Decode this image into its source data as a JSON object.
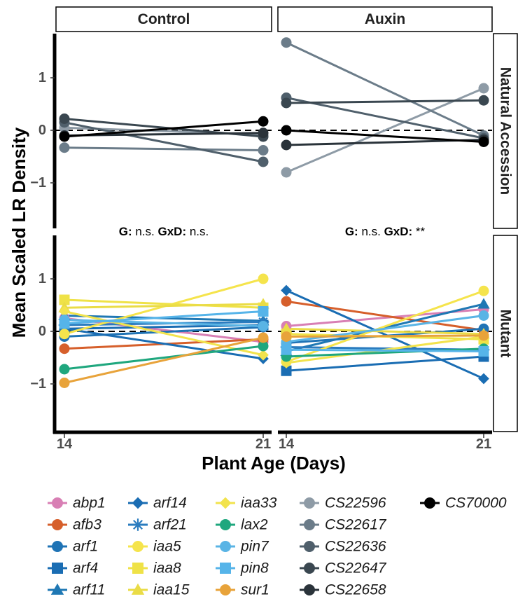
{
  "chart_data": {
    "type": "line",
    "ylabel": "Mean Scaled LR Density",
    "xlabel": "Plant Age (Days)",
    "x": [
      14,
      21
    ],
    "x_tick_labels": [
      "14",
      "21"
    ],
    "y_ticks": [
      -1,
      0,
      1
    ],
    "y_tick_labels": [
      "−1",
      "0",
      "1"
    ],
    "ylim": [
      -1.85,
      1.85
    ],
    "reference_line": 0,
    "columns": [
      "Control",
      "Auxin"
    ],
    "rows": [
      "Natural Accession",
      "Mutant"
    ],
    "annotations": [
      {
        "row": "Mutant",
        "column": "Control",
        "parts": [
          {
            "text": "G:",
            "bold": true
          },
          {
            "text": " n.s. ",
            "bold": false
          },
          {
            "text": "GxD:",
            "bold": true
          },
          {
            "text": " n.s.",
            "bold": false
          }
        ]
      },
      {
        "row": "Mutant",
        "column": "Auxin",
        "parts": [
          {
            "text": "G:",
            "bold": true
          },
          {
            "text": " n.s. ",
            "bold": false
          },
          {
            "text": "GxD:",
            "bold": true
          },
          {
            "text": " **",
            "bold": false
          }
        ]
      }
    ],
    "series": [
      {
        "name": "abp1",
        "color": "#d87fb4",
        "shape": "circle",
        "row": "Mutant",
        "Control": [
          0.25,
          -0.2
        ],
        "Auxin": [
          0.1,
          0.42
        ]
      },
      {
        "name": "afb3",
        "color": "#d65f2b",
        "shape": "circle",
        "row": "Mutant",
        "Control": [
          -0.33,
          -0.15
        ],
        "Auxin": [
          0.57,
          0.02
        ]
      },
      {
        "name": "arf1",
        "color": "#1f73b5",
        "shape": "circle",
        "row": "Mutant",
        "Control": [
          -0.1,
          0.08
        ],
        "Auxin": [
          -0.22,
          0.05
        ]
      },
      {
        "name": "arf4",
        "color": "#1a6db3",
        "shape": "square",
        "row": "Mutant",
        "Control": [
          0.05,
          0.12
        ],
        "Auxin": [
          -0.75,
          -0.48
        ]
      },
      {
        "name": "arf11",
        "color": "#1f78b4",
        "shape": "triangle",
        "row": "Mutant",
        "Control": [
          0.3,
          0.2
        ],
        "Auxin": [
          -0.38,
          0.52
        ]
      },
      {
        "name": "arf14",
        "color": "#1a6db3",
        "shape": "diamond",
        "row": "Mutant",
        "Control": [
          0.05,
          -0.52
        ],
        "Auxin": [
          0.78,
          -0.9
        ]
      },
      {
        "name": "arf21",
        "color": "#2b7cbf",
        "shape": "asterisk",
        "row": "Mutant",
        "Control": [
          0.12,
          0.18
        ],
        "Auxin": [
          -0.3,
          -0.35
        ]
      },
      {
        "name": "iaa5",
        "color": "#f5e44c",
        "shape": "circle",
        "row": "Mutant",
        "Control": [
          -0.05,
          1.0
        ],
        "Auxin": [
          -0.58,
          0.77
        ]
      },
      {
        "name": "iaa8",
        "color": "#efe247",
        "shape": "square",
        "row": "Mutant",
        "Control": [
          0.6,
          0.45
        ],
        "Auxin": [
          -0.05,
          -0.15
        ]
      },
      {
        "name": "iaa15",
        "color": "#eadc46",
        "shape": "triangle",
        "row": "Mutant",
        "Control": [
          0.45,
          0.52
        ],
        "Auxin": [
          0.05,
          -0.05
        ]
      },
      {
        "name": "iaa33",
        "color": "#f2e34d",
        "shape": "diamond",
        "row": "Mutant",
        "Control": [
          0.38,
          -0.45
        ],
        "Auxin": [
          -0.6,
          -0.1
        ]
      },
      {
        "name": "lax2",
        "color": "#1fa77e",
        "shape": "circle",
        "row": "Mutant",
        "Control": [
          -0.72,
          -0.28
        ],
        "Auxin": [
          -0.48,
          -0.33
        ]
      },
      {
        "name": "pin7",
        "color": "#5ab4e5",
        "shape": "circle",
        "row": "Mutant",
        "Control": [
          0.22,
          0.1
        ],
        "Auxin": [
          -0.2,
          0.3
        ]
      },
      {
        "name": "pin8",
        "color": "#56b4e9",
        "shape": "square",
        "row": "Mutant",
        "Control": [
          0.15,
          0.38
        ],
        "Auxin": [
          -0.35,
          -0.38
        ]
      },
      {
        "name": "sur1",
        "color": "#e8a33a",
        "shape": "circle",
        "row": "Mutant",
        "Control": [
          -0.98,
          -0.12
        ],
        "Auxin": [
          -0.1,
          -0.08
        ]
      },
      {
        "name": "CS22596",
        "color": "#8e9ba6",
        "shape": "circle",
        "row": "Natural Accession",
        "Control": [
          0.05,
          -0.08
        ],
        "Auxin": [
          -0.8,
          0.8
        ]
      },
      {
        "name": "CS22617",
        "color": "#6b7c89",
        "shape": "circle",
        "row": "Natural Accession",
        "Control": [
          -0.33,
          -0.38
        ],
        "Auxin": [
          1.67,
          -0.1
        ]
      },
      {
        "name": "CS22636",
        "color": "#4f5f6b",
        "shape": "circle",
        "row": "Natural Accession",
        "Control": [
          0.15,
          -0.6
        ],
        "Auxin": [
          0.62,
          -0.15
        ]
      },
      {
        "name": "CS22647",
        "color": "#3a4750",
        "shape": "circle",
        "row": "Natural Accession",
        "Control": [
          0.22,
          -0.12
        ],
        "Auxin": [
          0.52,
          0.57
        ]
      },
      {
        "name": "CS22658",
        "color": "#2a333a",
        "shape": "circle",
        "row": "Natural Accession",
        "Control": [
          -0.1,
          -0.05
        ],
        "Auxin": [
          -0.28,
          -0.18
        ]
      },
      {
        "name": "CS70000",
        "color": "#000000",
        "shape": "circle",
        "row": "Natural Accession",
        "Control": [
          -0.12,
          0.17
        ],
        "Auxin": [
          0.0,
          -0.22
        ]
      }
    ],
    "legend": {
      "position": "bottom",
      "columns": [
        [
          "abp1",
          "afb3",
          "arf1",
          "arf4",
          "arf11"
        ],
        [
          "arf14",
          "arf21",
          "iaa5",
          "iaa8",
          "iaa15"
        ],
        [
          "iaa33",
          "lax2",
          "pin7",
          "pin8",
          "sur1"
        ],
        [
          "CS22596",
          "CS22617",
          "CS22636",
          "CS22647",
          "CS22658"
        ],
        [
          "CS70000"
        ]
      ]
    }
  }
}
